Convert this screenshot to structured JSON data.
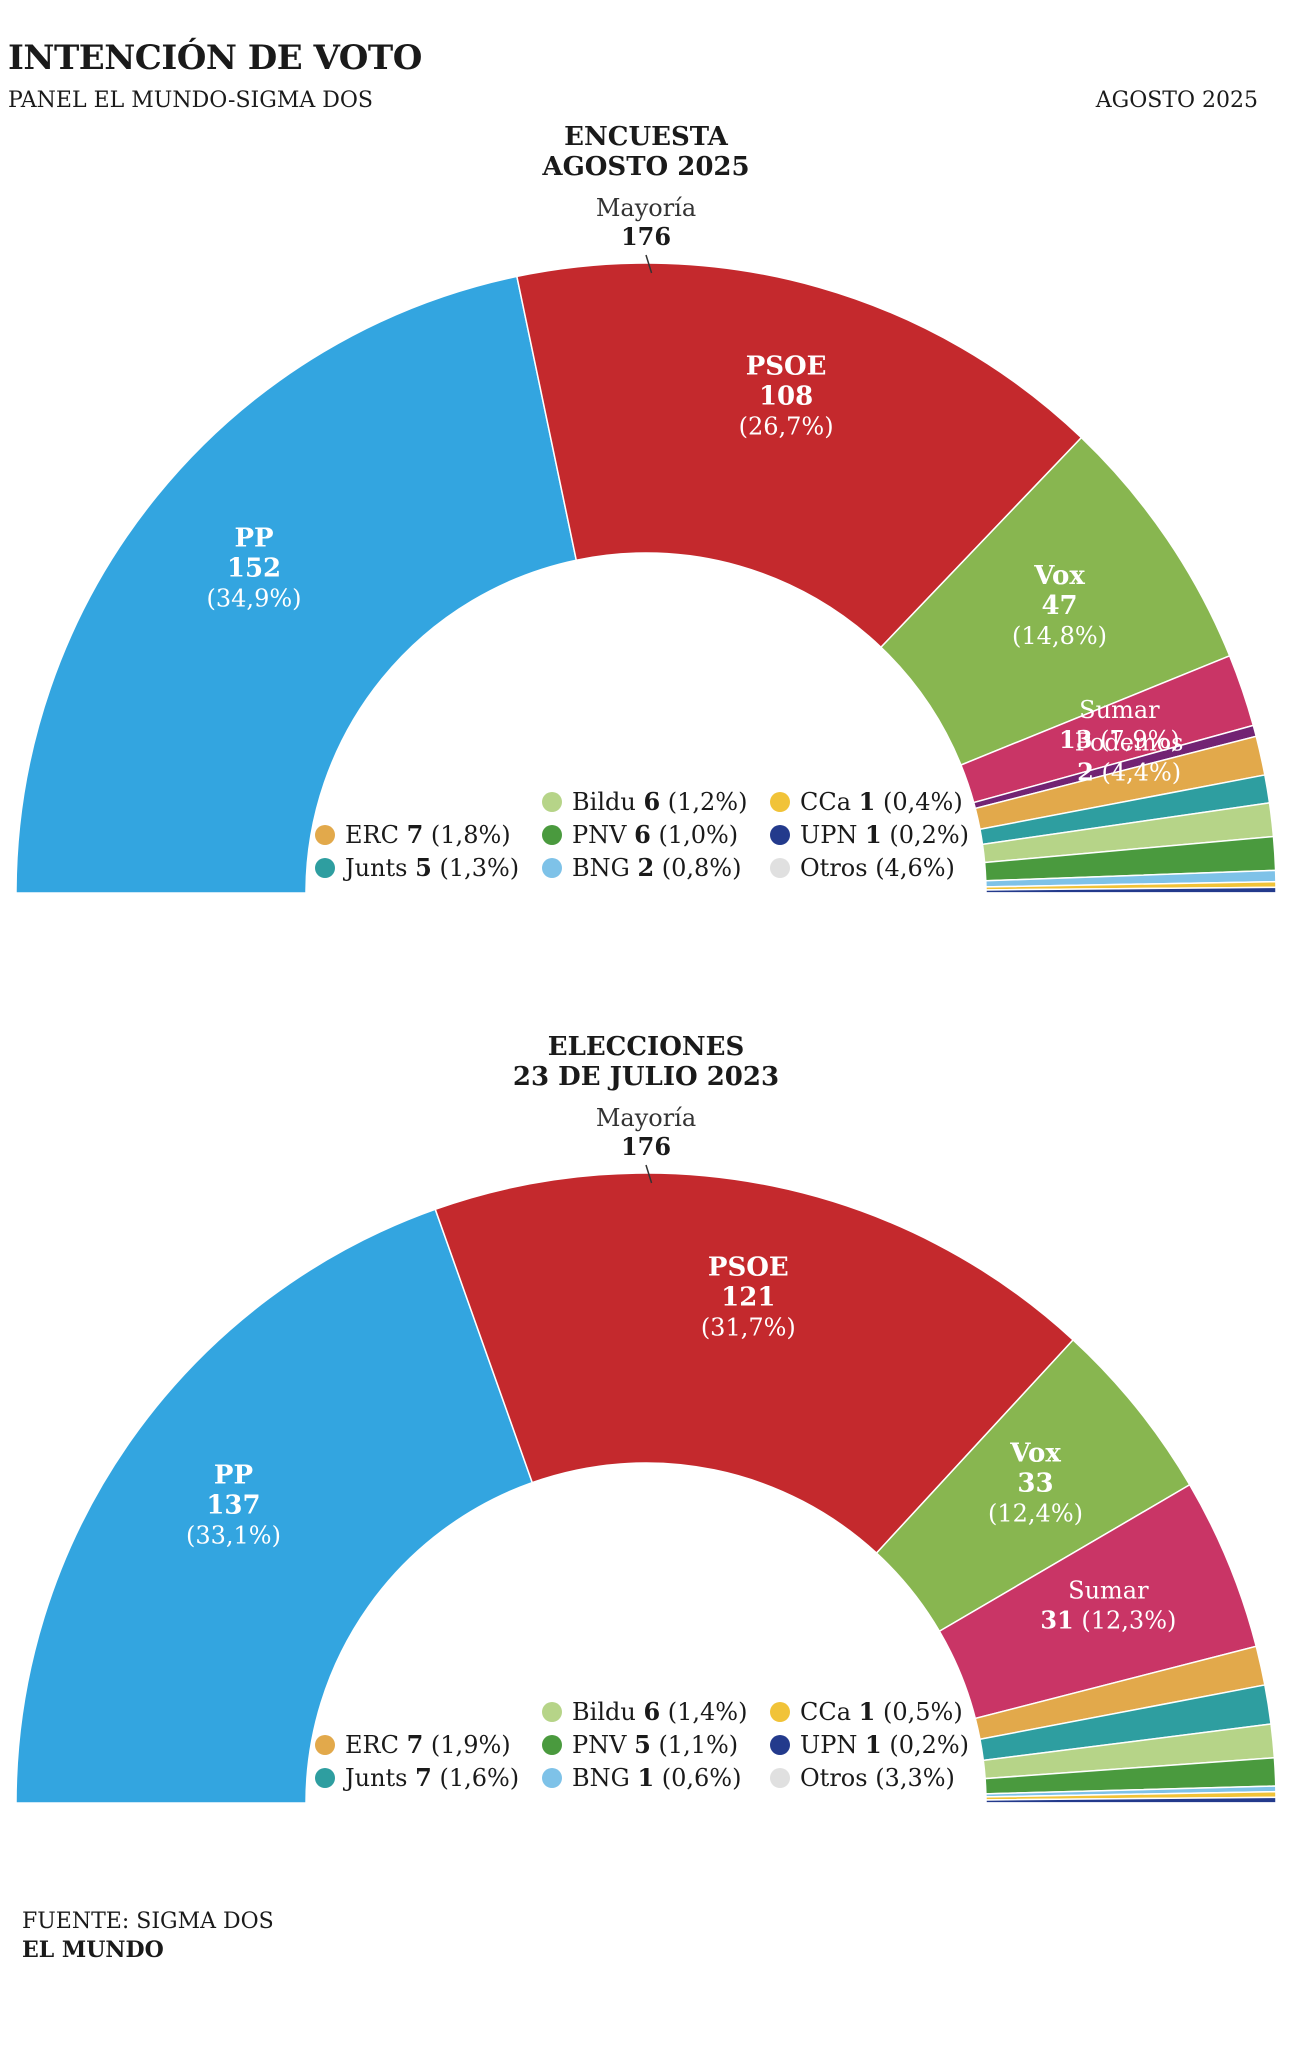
{
  "header": {
    "title": "INTENCIÓN DE VOTO",
    "subtitle": "PANEL EL MUNDO-SIGMA DOS",
    "date": "AGOSTO 2025"
  },
  "footer": {
    "source": "FUENTE: SIGMA DOS",
    "brand": "EL MUNDO"
  },
  "chart_data": [
    {
      "type": "pie",
      "subtype": "hemicycle",
      "title_lines": [
        "ENCUESTA",
        "AGOSTO 2025"
      ],
      "majority_label": "Mayoría",
      "majority_value": 176,
      "total_seats": 350,
      "series": [
        {
          "name": "PP",
          "seats": 152,
          "pct": "34,9%",
          "color": "#33a5e0"
        },
        {
          "name": "PSOE",
          "seats": 108,
          "pct": "26,7%",
          "color": "#c4292d"
        },
        {
          "name": "Vox",
          "seats": 47,
          "pct": "14,8%",
          "color": "#88b650"
        },
        {
          "name": "Sumar",
          "seats": 13,
          "pct": "7,9%",
          "color": "#c93566"
        },
        {
          "name": "Podemos",
          "seats": 2,
          "pct": "4,4%",
          "color": "#722373"
        },
        {
          "name": "ERC",
          "seats": 7,
          "pct": "1,8%",
          "color": "#e2a94b"
        },
        {
          "name": "Junts",
          "seats": 5,
          "pct": "1,3%",
          "color": "#2e9ea0"
        },
        {
          "name": "Bildu",
          "seats": 6,
          "pct": "1,2%",
          "color": "#b6d488"
        },
        {
          "name": "PNV",
          "seats": 6,
          "pct": "1,0%",
          "color": "#4a9a3e"
        },
        {
          "name": "BNG",
          "seats": 2,
          "pct": "0,8%",
          "color": "#7ec2e8"
        },
        {
          "name": "CCa",
          "seats": 1,
          "pct": "0,4%",
          "color": "#f1c338"
        },
        {
          "name": "UPN",
          "seats": 1,
          "pct": "0,2%",
          "color": "#233a8c"
        },
        {
          "name": "Otros",
          "seats": null,
          "pct": "4,6%",
          "color": "#e0e0e0"
        }
      ],
      "legend": [
        [
          "ERC",
          "Junts"
        ],
        [
          "Bildu",
          "PNV",
          "BNG"
        ],
        [
          "CCa",
          "UPN",
          "Otros"
        ]
      ]
    },
    {
      "type": "pie",
      "subtype": "hemicycle",
      "title_lines": [
        "ELECCIONES",
        "23 DE JULIO 2023"
      ],
      "majority_label": "Mayoría",
      "majority_value": 176,
      "total_seats": 350,
      "series": [
        {
          "name": "PP",
          "seats": 137,
          "pct": "33,1%",
          "color": "#33a5e0"
        },
        {
          "name": "PSOE",
          "seats": 121,
          "pct": "31,7%",
          "color": "#c4292d"
        },
        {
          "name": "Vox",
          "seats": 33,
          "pct": "12,4%",
          "color": "#88b650"
        },
        {
          "name": "Sumar",
          "seats": 31,
          "pct": "12,3%",
          "color": "#c93566"
        },
        {
          "name": "ERC",
          "seats": 7,
          "pct": "1,9%",
          "color": "#e2a94b"
        },
        {
          "name": "Junts",
          "seats": 7,
          "pct": "1,6%",
          "color": "#2e9ea0"
        },
        {
          "name": "Bildu",
          "seats": 6,
          "pct": "1,4%",
          "color": "#b6d488"
        },
        {
          "name": "PNV",
          "seats": 5,
          "pct": "1,1%",
          "color": "#4a9a3e"
        },
        {
          "name": "BNG",
          "seats": 1,
          "pct": "0,6%",
          "color": "#7ec2e8"
        },
        {
          "name": "CCa",
          "seats": 1,
          "pct": "0,5%",
          "color": "#f1c338"
        },
        {
          "name": "UPN",
          "seats": 1,
          "pct": "0,2%",
          "color": "#233a8c"
        },
        {
          "name": "Otros",
          "seats": null,
          "pct": "3,3%",
          "color": "#e0e0e0"
        }
      ],
      "legend": [
        [
          "ERC",
          "Junts"
        ],
        [
          "Bildu",
          "PNV",
          "BNG"
        ],
        [
          "CCa",
          "UPN",
          "Otros"
        ]
      ]
    }
  ]
}
